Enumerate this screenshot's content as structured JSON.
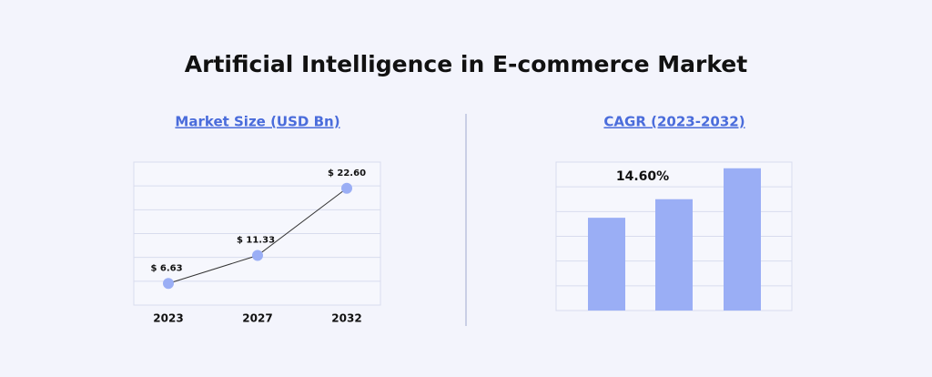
{
  "title": "Artificial Intelligence in E-commerce Market",
  "chart_data": [
    {
      "type": "line",
      "title": "Market Size (USD Bn)",
      "categories": [
        "2023",
        "2027",
        "2032"
      ],
      "values": [
        6.63,
        11.33,
        22.6
      ],
      "value_labels": [
        "$ 6.63",
        "$ 11.33",
        "$ 22.60"
      ],
      "color": "#9aaef5",
      "line_color": "#333333",
      "ylim": [
        3,
        27
      ],
      "grid": true
    },
    {
      "type": "bar",
      "title": "CAGR (2023-2032)",
      "categories": [
        null,
        null,
        null
      ],
      "values": [
        3.75,
        4.5,
        5.75
      ],
      "color": "#9aaef5",
      "annotation": "14.60%",
      "ylim": [
        0,
        6
      ],
      "grid": true
    }
  ]
}
